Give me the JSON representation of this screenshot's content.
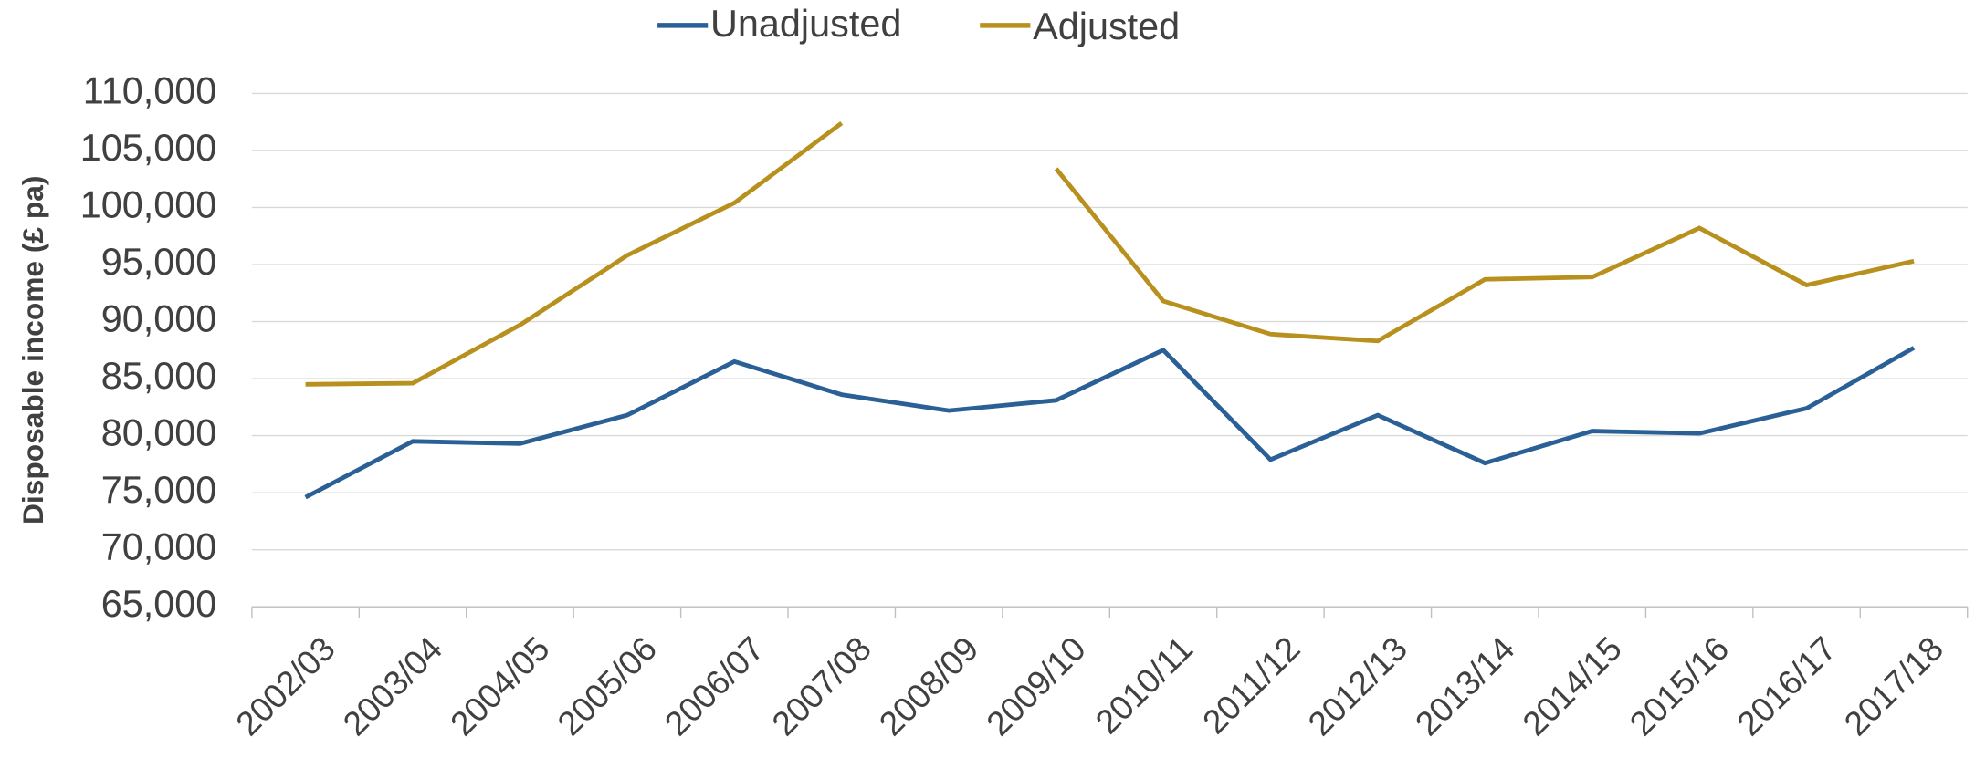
{
  "chart_data": {
    "type": "line",
    "y_axis_label": "Disposable income (£ pa)",
    "categories": [
      "2002/03",
      "2003/04",
      "2004/05",
      "2005/06",
      "2006/07",
      "2007/08",
      "2008/09",
      "2009/10",
      "2010/11",
      "2011/12",
      "2012/13",
      "2013/14",
      "2014/15",
      "2015/16",
      "2016/17",
      "2017/18"
    ],
    "series": [
      {
        "name": "Unadjusted",
        "color": "#2a6095",
        "values": [
          74600,
          79500,
          79300,
          81800,
          86500,
          83600,
          82200,
          83100,
          87500,
          77900,
          81800,
          77600,
          80400,
          80200,
          82400,
          87700
        ]
      },
      {
        "name": "Adjusted",
        "color": "#b8901e",
        "values": [
          84500,
          84600,
          89700,
          95800,
          100400,
          107400,
          null,
          103400,
          91800,
          88900,
          88300,
          93700,
          93900,
          98200,
          93200,
          95300
        ]
      }
    ],
    "ylim": [
      65000,
      110000
    ],
    "yticks": [
      {
        "value": 65000,
        "label": "65,000"
      },
      {
        "value": 70000,
        "label": "70,000"
      },
      {
        "value": 75000,
        "label": "75,000"
      },
      {
        "value": 80000,
        "label": "80,000"
      },
      {
        "value": 85000,
        "label": "85,000"
      },
      {
        "value": 90000,
        "label": "90,000"
      },
      {
        "value": 95000,
        "label": "95,000"
      },
      {
        "value": 100000,
        "label": "100,000"
      },
      {
        "value": 105000,
        "label": "105,000"
      },
      {
        "value": 110000,
        "label": "110,000"
      }
    ],
    "grid": true,
    "legend": "top"
  }
}
